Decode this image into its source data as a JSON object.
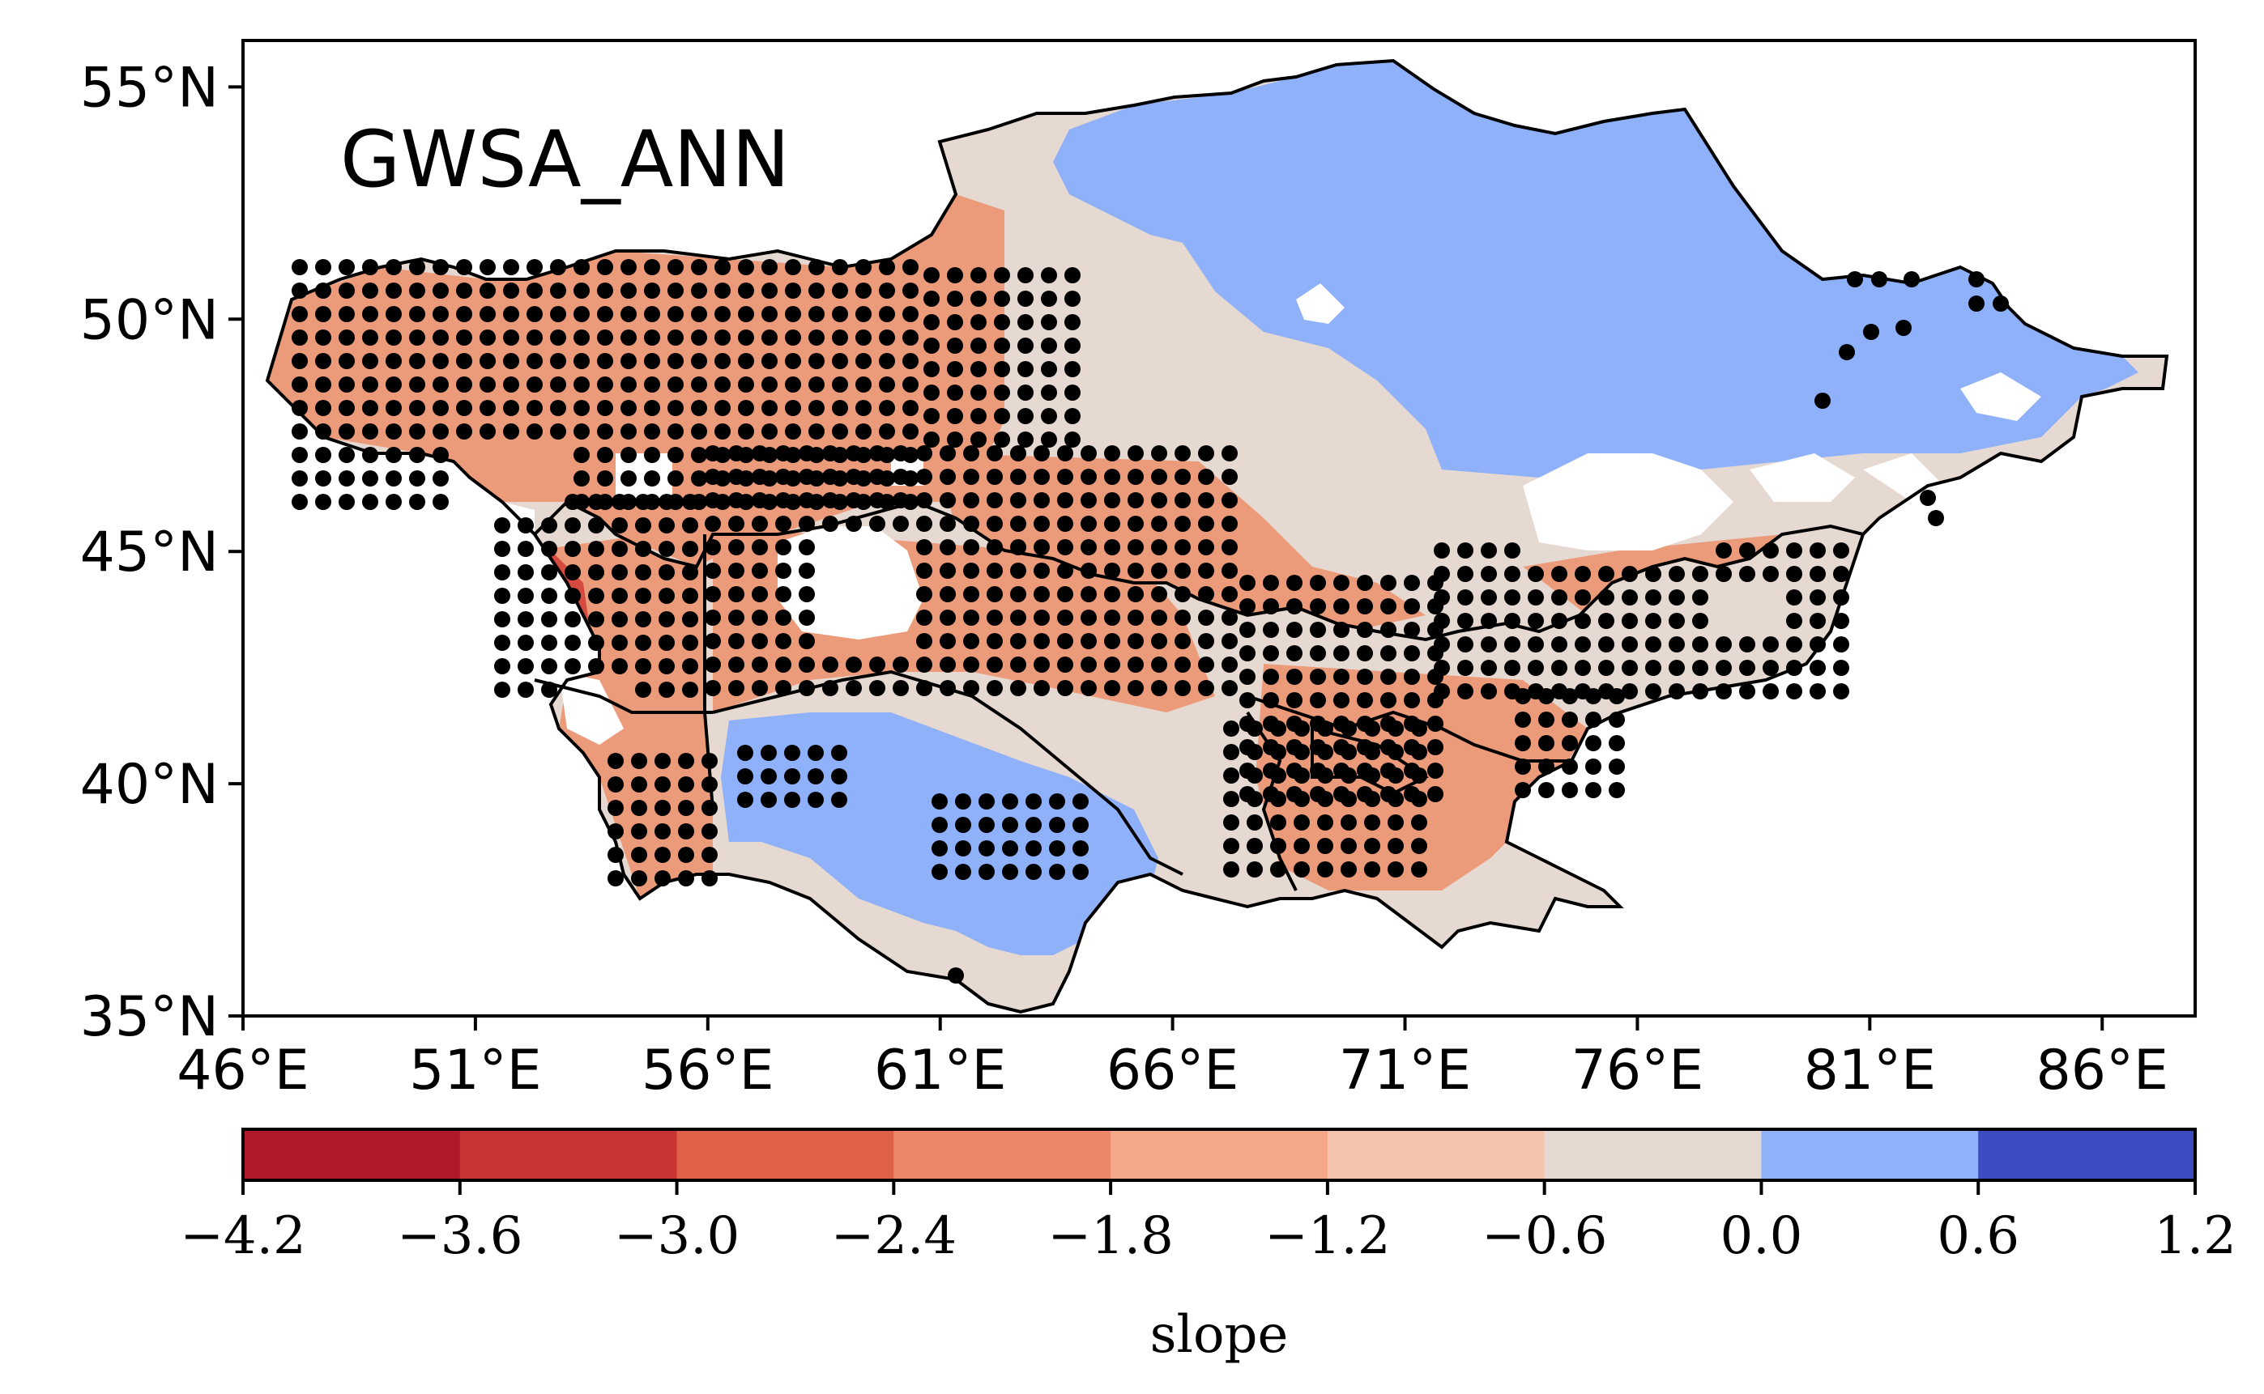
{
  "map": {
    "title": "GWSA_ANN",
    "lat_ticks": [
      "55°N",
      "50°N",
      "45°N",
      "40°N",
      "35°N"
    ],
    "lon_ticks": [
      "46°E",
      "51°E",
      "56°E",
      "61°E",
      "66°E",
      "71°E",
      "76°E",
      "81°E",
      "86°E"
    ],
    "lat_range": [
      35,
      56
    ],
    "lon_range": [
      46,
      88
    ]
  },
  "colorbar": {
    "label": "slope",
    "ticks": [
      "−4.2",
      "−3.6",
      "−3.0",
      "−2.4",
      "−1.8",
      "−1.2",
      "−0.6",
      "0.0",
      "0.6",
      "1.2"
    ],
    "colors": [
      "#b2182b",
      "#c93535",
      "#df614a",
      "#ec8769",
      "#f5a889",
      "#f3c3ab",
      "#e5d8d1",
      "#8fb1f9",
      "#3b4cc0"
    ]
  },
  "palette": {
    "background_trend": "#e6d9d2",
    "positive_trend": "#8fb1f9",
    "negative_moderate": "#eb9a7a",
    "negative_strong": "#d64b3f",
    "significance_dot": "#000000"
  }
}
